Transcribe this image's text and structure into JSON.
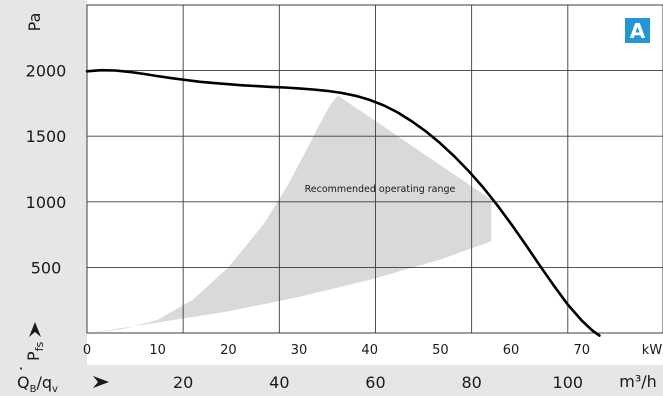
{
  "chart_data": {
    "type": "line",
    "badge": "A",
    "y_axis": {
      "unit": "Pa",
      "label_main": "P",
      "label_sub": "fs",
      "range": [
        0,
        2500
      ],
      "ticks": [
        500,
        1000,
        1500,
        2000
      ],
      "tick_labels": [
        "500",
        "1000",
        "1500",
        "2000"
      ]
    },
    "x_axis_kw": {
      "unit": "kW",
      "range": [
        0,
        81.5
      ],
      "ticks": [
        0,
        10,
        20,
        30,
        40,
        50,
        60,
        70
      ],
      "tick_labels": [
        "0",
        "10",
        "20",
        "30",
        "40",
        "50",
        "60",
        "70"
      ]
    },
    "x_axis_m3h": {
      "label_main": "Q",
      "label_sub_1": "B",
      "label_sep": "/q",
      "label_sub_2": "v",
      "unit": "m³/h",
      "ticks": [
        20,
        40,
        60,
        80,
        100
      ],
      "tick_labels": [
        "20",
        "40",
        "60",
        "80",
        "100"
      ],
      "kw_per_m3h": 0.6803
    },
    "series": [
      {
        "type": "line",
        "color": "#000000",
        "points": [
          [
            0,
            1995
          ],
          [
            2,
            2003
          ],
          [
            4,
            2001
          ],
          [
            6,
            1990
          ],
          [
            8,
            1975
          ],
          [
            10,
            1958
          ],
          [
            12,
            1942
          ],
          [
            14,
            1928
          ],
          [
            16,
            1915
          ],
          [
            18,
            1905
          ],
          [
            20,
            1896
          ],
          [
            22,
            1888
          ],
          [
            24,
            1882
          ],
          [
            26,
            1876
          ],
          [
            28,
            1871
          ],
          [
            30,
            1864
          ],
          [
            32,
            1856
          ],
          [
            34,
            1845
          ],
          [
            36,
            1830
          ],
          [
            38,
            1808
          ],
          [
            40,
            1777
          ],
          [
            42,
            1735
          ],
          [
            44,
            1680
          ],
          [
            46,
            1612
          ],
          [
            48,
            1535
          ],
          [
            50,
            1445
          ],
          [
            52,
            1345
          ],
          [
            54,
            1235
          ],
          [
            56,
            1113
          ],
          [
            58,
            978
          ],
          [
            60,
            832
          ],
          [
            62,
            678
          ],
          [
            64,
            520
          ],
          [
            66,
            365
          ],
          [
            68,
            218
          ],
          [
            70,
            95
          ],
          [
            71.5,
            20
          ],
          [
            72.5,
            -20
          ]
        ]
      }
    ],
    "region": {
      "label": "Recommended operating range",
      "color": "#d9d9d9",
      "upper": [
        [
          0,
          0
        ],
        [
          5,
          28
        ],
        [
          10,
          100
        ],
        [
          15,
          255
        ],
        [
          20,
          500
        ],
        [
          25,
          830
        ],
        [
          28.5,
          1135
        ],
        [
          31,
          1390
        ],
        [
          33,
          1600
        ],
        [
          34.5,
          1745
        ],
        [
          35.5,
          1810
        ]
      ],
      "right": [
        [
          57.2,
          1015
        ],
        [
          57.2,
          700
        ]
      ],
      "lower": [
        [
          50,
          560
        ],
        [
          40,
          405
        ],
        [
          30,
          275
        ],
        [
          20,
          165
        ],
        [
          10,
          80
        ],
        [
          5,
          38
        ],
        [
          0,
          0
        ]
      ]
    }
  }
}
